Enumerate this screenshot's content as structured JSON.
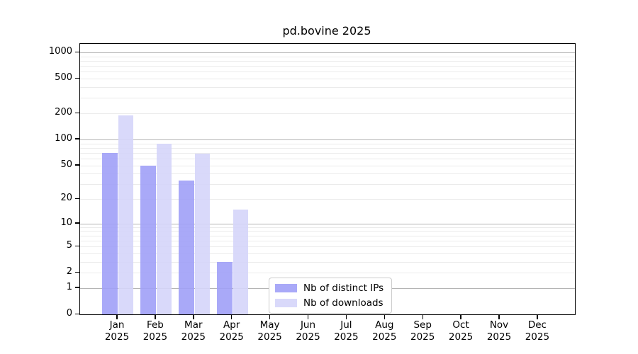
{
  "title": "pd.bovine 2025",
  "chart_data": {
    "type": "bar",
    "title": "pd.bovine 2025",
    "categories": [
      "Jan",
      "Feb",
      "Mar",
      "Apr",
      "May",
      "Jun",
      "Jul",
      "Aug",
      "Sep",
      "Oct",
      "Nov",
      "Dec"
    ],
    "x_year": "2025",
    "series": [
      {
        "name": "Nb of distinct IPs",
        "color": "rgba(160,160,247,0.9)",
        "values": [
          70,
          50,
          33,
          3,
          0,
          0,
          0,
          0,
          0,
          0,
          0,
          0
        ]
      },
      {
        "name": "Nb of downloads",
        "color": "rgba(213,213,250,0.9)",
        "values": [
          190,
          90,
          69,
          15,
          0,
          0,
          0,
          0,
          0,
          0,
          0,
          0
        ]
      }
    ],
    "y_axis": {
      "scale": "log1p",
      "tick_values": [
        0,
        1,
        2,
        5,
        10,
        20,
        50,
        100,
        200,
        500,
        1000
      ],
      "top_value": 1250
    },
    "grid": {
      "major_values": [
        1,
        10,
        100,
        1000
      ],
      "minor_decades": [
        1,
        10,
        100
      ]
    },
    "legend": {
      "position": "inside-bottom-center",
      "entries": [
        "Nb of distinct IPs",
        "Nb of downloads"
      ]
    }
  },
  "colors": {
    "bar_distinct_ips": "rgba(160,160,247,0.9)",
    "bar_downloads": "rgba(213,213,250,0.9)",
    "grid_major": "#b4b4b4",
    "grid_minor": "#ebebeb",
    "axis": "#000000",
    "legend_border": "#cccccc"
  }
}
